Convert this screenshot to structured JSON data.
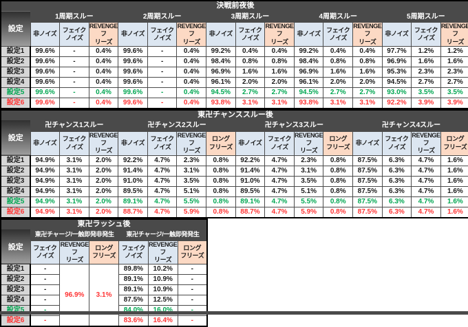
{
  "colors": {
    "title_bg": "#4a4a4a",
    "title_text": "#ffffff",
    "header_blue": "#dce6f1",
    "header_peach": "#fcd9c4",
    "label_bg": "#d6d6d6",
    "green_text": "#00a651",
    "red_text": "#ff3333",
    "data_text": "#1a1a1a"
  },
  "setting_label": "設定",
  "row_labels": [
    "設定1",
    "設定2",
    "設定3",
    "設定4",
    "設定5",
    "設定6"
  ],
  "row_styles": [
    "normal",
    "normal",
    "normal",
    "normal",
    "green",
    "red"
  ],
  "chart_data": [
    {
      "type": "table",
      "title": "決戦前夜後",
      "groups": [
        {
          "label": "1周期スルー",
          "columns": [
            {
              "label": "非ノイズ",
              "tone": "blue"
            },
            {
              "label": "フェイク\nノイズ",
              "tone": "blue"
            },
            {
              "label": "REVENGEフ\nリーズ",
              "tone": "peach"
            }
          ]
        },
        {
          "label": "2周期スルー",
          "columns": [
            {
              "label": "非ノイズ",
              "tone": "blue"
            },
            {
              "label": "フェイク\nノイズ",
              "tone": "blue"
            },
            {
              "label": "REVENGEフ\nリーズ",
              "tone": "peach"
            }
          ]
        },
        {
          "label": "3周期スルー",
          "columns": [
            {
              "label": "非ノイズ",
              "tone": "blue"
            },
            {
              "label": "フェイク\nノイズ",
              "tone": "blue"
            },
            {
              "label": "REVENGEフ\nリーズ",
              "tone": "peach"
            }
          ]
        },
        {
          "label": "4周期スルー",
          "columns": [
            {
              "label": "非ノイズ",
              "tone": "blue"
            },
            {
              "label": "フェイク\nノイズ",
              "tone": "blue"
            },
            {
              "label": "REVENGEフ\nリーズ",
              "tone": "peach"
            }
          ]
        },
        {
          "label": "5周期スルー",
          "columns": [
            {
              "label": "非ノイズ",
              "tone": "blue"
            },
            {
              "label": "フェイク\nノイズ",
              "tone": "blue"
            },
            {
              "label": "REVENGEフ\nリーズ",
              "tone": "peach"
            }
          ]
        }
      ],
      "rows": [
        [
          "99.6%",
          "-",
          "0.4%",
          "99.6%",
          "-",
          "0.4%",
          "99.2%",
          "0.4%",
          "0.4%",
          "99.2%",
          "0.4%",
          "0.4%",
          "97.7%",
          "1.2%",
          "1.2%"
        ],
        [
          "99.6%",
          "-",
          "0.4%",
          "99.6%",
          "-",
          "0.4%",
          "98.4%",
          "0.8%",
          "0.8%",
          "98.4%",
          "0.8%",
          "0.8%",
          "96.9%",
          "1.6%",
          "1.6%"
        ],
        [
          "99.6%",
          "-",
          "0.4%",
          "99.6%",
          "-",
          "0.4%",
          "96.9%",
          "1.6%",
          "1.6%",
          "96.9%",
          "1.6%",
          "1.6%",
          "95.3%",
          "2.3%",
          "2.3%"
        ],
        [
          "99.6%",
          "-",
          "0.4%",
          "99.6%",
          "-",
          "0.4%",
          "96.1%",
          "2.0%",
          "2.0%",
          "96.1%",
          "2.0%",
          "2.0%",
          "94.5%",
          "2.7%",
          "2.7%"
        ],
        [
          "99.6%",
          "-",
          "0.4%",
          "99.6%",
          "-",
          "0.4%",
          "94.5%",
          "2.7%",
          "2.7%",
          "94.5%",
          "2.7%",
          "2.7%",
          "93.0%",
          "3.5%",
          "3.5%"
        ],
        [
          "99.6%",
          "-",
          "0.4%",
          "99.6%",
          "-",
          "0.4%",
          "93.8%",
          "3.1%",
          "3.1%",
          "93.8%",
          "3.1%",
          "3.1%",
          "92.2%",
          "3.9%",
          "3.9%"
        ]
      ]
    },
    {
      "type": "table",
      "title": "東卍チャンススルー後",
      "groups": [
        {
          "label": "卍チャンス1スルー",
          "columns": [
            {
              "label": "非ノイズ",
              "tone": "blue"
            },
            {
              "label": "フェイク\nノイズ",
              "tone": "blue"
            },
            {
              "label": "REVENGEフ\nリーズ",
              "tone": "blue"
            }
          ]
        },
        {
          "label": "卍チャンス2スルー",
          "columns": [
            {
              "label": "非ノイズ",
              "tone": "blue"
            },
            {
              "label": "フェイク\nノイズ",
              "tone": "blue"
            },
            {
              "label": "REVENGEフ\nリーズ",
              "tone": "blue"
            },
            {
              "label": "ロング\nフリーズ",
              "tone": "peach"
            }
          ]
        },
        {
          "label": "卍チャンス3スルー",
          "columns": [
            {
              "label": "非ノイズ",
              "tone": "blue"
            },
            {
              "label": "フェイク\nノイズ",
              "tone": "blue"
            },
            {
              "label": "REVENGEフ\nリーズ",
              "tone": "blue"
            },
            {
              "label": "ロング\nフリーズ",
              "tone": "peach"
            }
          ]
        },
        {
          "label": "卍チャンス4スルー",
          "columns": [
            {
              "label": "非ノイズ",
              "tone": "blue"
            },
            {
              "label": "フェイク\nノイズ",
              "tone": "blue"
            },
            {
              "label": "REVENGEフ\nリーズ",
              "tone": "blue"
            },
            {
              "label": "ロング\nフリーズ",
              "tone": "peach"
            }
          ]
        }
      ],
      "rows": [
        [
          "94.9%",
          "3.1%",
          "2.0%",
          "92.2%",
          "4.7%",
          "2.3%",
          "0.8%",
          "92.2%",
          "4.7%",
          "2.3%",
          "0.8%",
          "87.5%",
          "6.3%",
          "4.7%",
          "1.6%"
        ],
        [
          "94.9%",
          "3.1%",
          "2.0%",
          "91.4%",
          "4.7%",
          "3.1%",
          "0.8%",
          "91.4%",
          "4.7%",
          "3.1%",
          "0.8%",
          "87.5%",
          "6.3%",
          "4.7%",
          "1.6%"
        ],
        [
          "94.9%",
          "3.1%",
          "2.0%",
          "91.0%",
          "4.7%",
          "3.5%",
          "0.8%",
          "91.0%",
          "4.7%",
          "3.5%",
          "0.8%",
          "87.5%",
          "6.3%",
          "4.7%",
          "1.6%"
        ],
        [
          "94.9%",
          "3.1%",
          "2.0%",
          "89.5%",
          "4.7%",
          "5.1%",
          "0.8%",
          "89.5%",
          "4.7%",
          "5.1%",
          "0.8%",
          "87.5%",
          "6.3%",
          "4.7%",
          "1.6%"
        ],
        [
          "94.9%",
          "3.1%",
          "2.0%",
          "89.1%",
          "4.7%",
          "5.5%",
          "0.8%",
          "89.1%",
          "4.7%",
          "5.5%",
          "0.8%",
          "87.5%",
          "6.3%",
          "4.7%",
          "1.6%"
        ],
        [
          "94.9%",
          "3.1%",
          "2.0%",
          "88.7%",
          "4.7%",
          "5.9%",
          "0.8%",
          "88.7%",
          "4.7%",
          "5.9%",
          "0.8%",
          "87.5%",
          "6.3%",
          "4.7%",
          "1.6%"
        ]
      ]
    },
    {
      "type": "table",
      "title": "東卍ラッシュ後",
      "groups": [
        {
          "label": "東卍チャージ/一触即発非発生",
          "columns": [
            {
              "label": "フェイク\nノイズ",
              "tone": "blue"
            },
            {
              "label": "REVENGEフ\nリーズ",
              "tone": "blue"
            },
            {
              "label": "ロング\nフリーズ",
              "tone": "peach"
            }
          ]
        },
        {
          "label": "東卍チャージ/一触即発発生",
          "columns": [
            {
              "label": "フェイク\nノイズ",
              "tone": "blue"
            },
            {
              "label": "REVENGEフ\nリーズ",
              "tone": "blue"
            },
            {
              "label": "ロング\nフリーズ",
              "tone": "peach"
            }
          ]
        }
      ],
      "merged_columns": [
        1,
        2
      ],
      "rows": [
        [
          "-",
          "96.9%",
          "3.1%",
          "89.8%",
          "10.2%",
          "-"
        ],
        [
          "-",
          null,
          null,
          "89.1%",
          "10.9%",
          "-"
        ],
        [
          "-",
          null,
          null,
          "89.1%",
          "10.9%",
          "-"
        ],
        [
          "-",
          null,
          null,
          "87.5%",
          "12.5%",
          "-"
        ],
        [
          "-",
          null,
          null,
          "84.0%",
          "16.0%",
          "-"
        ],
        [
          "-",
          null,
          null,
          "83.6%",
          "16.4%",
          "-"
        ]
      ]
    }
  ]
}
